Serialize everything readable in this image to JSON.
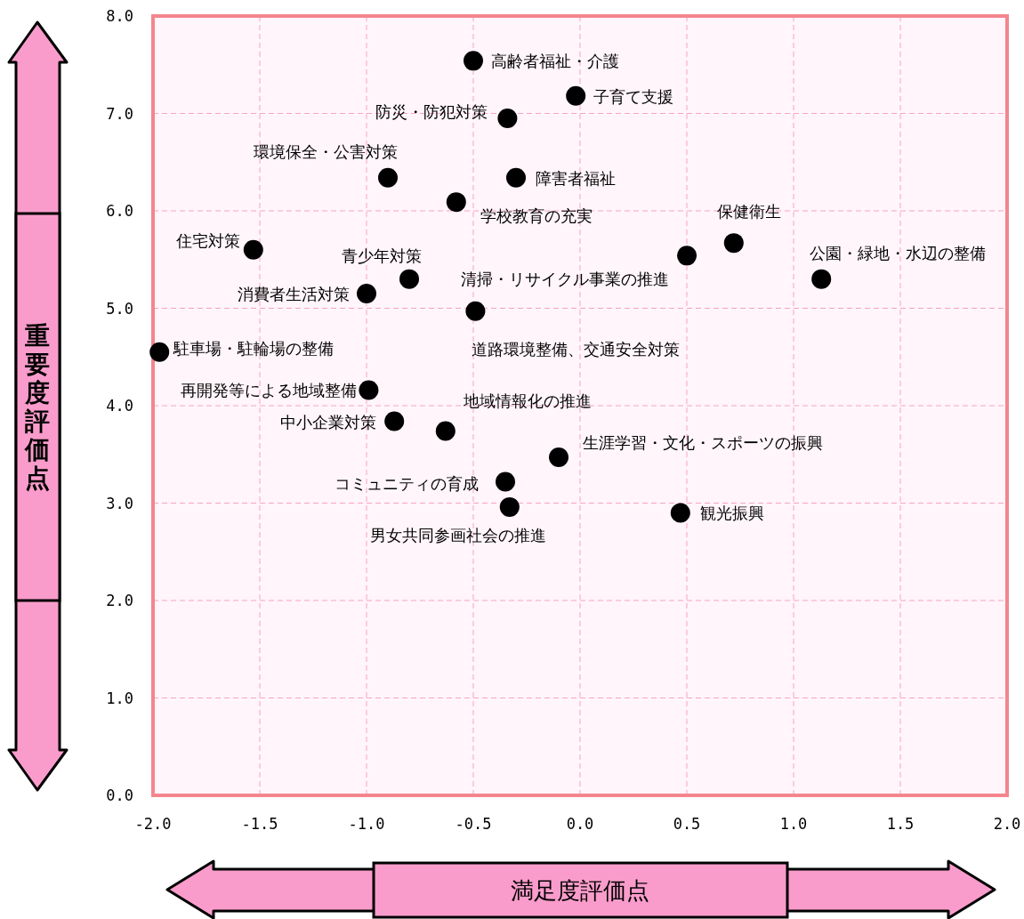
{
  "chart_data": {
    "type": "scatter",
    "xlabel": "満足度評価点",
    "ylabel": "重要度評価点",
    "xlim": [
      -2,
      2
    ],
    "ylim": [
      0,
      8
    ],
    "xticks": [
      {
        "value": -2,
        "label": "-2.0"
      },
      {
        "value": -1.5,
        "label": "-1.5"
      },
      {
        "value": -1,
        "label": "-1.0"
      },
      {
        "value": -0.5,
        "label": "-0.5"
      },
      {
        "value": 0,
        "label": "0.0"
      },
      {
        "value": 0.5,
        "label": "0.5"
      },
      {
        "value": 1,
        "label": "1.0"
      },
      {
        "value": 1.5,
        "label": "1.5"
      },
      {
        "value": 2,
        "label": "2.0"
      }
    ],
    "yticks": [
      {
        "value": 0,
        "label": "0.0"
      },
      {
        "value": 1,
        "label": "1.0"
      },
      {
        "value": 2,
        "label": "2.0"
      },
      {
        "value": 3,
        "label": "3.0"
      },
      {
        "value": 4,
        "label": "4.0"
      },
      {
        "value": 5,
        "label": "5.0"
      },
      {
        "value": 6,
        "label": "6.0"
      },
      {
        "value": 7,
        "label": "7.0"
      },
      {
        "value": 8,
        "label": "8.0"
      }
    ],
    "grid": true,
    "marker": "circle",
    "series": [
      {
        "color": "#000000",
        "x": [
          -0.5,
          -0.02,
          -0.34,
          -0.9,
          -0.3,
          -0.58,
          -1.53,
          0.72,
          0.5,
          1.13,
          -0.8,
          -1.0,
          -0.49,
          -1.97,
          -0.99,
          -0.87,
          -0.63,
          -0.1,
          -0.35,
          -0.33,
          0.47
        ],
        "values": [
          7.54,
          7.18,
          6.95,
          6.34,
          6.34,
          6.09,
          5.6,
          5.67,
          5.54,
          5.3,
          5.3,
          5.15,
          4.97,
          4.55,
          4.16,
          3.84,
          3.74,
          3.47,
          3.22,
          2.96,
          2.9
        ]
      }
    ],
    "annotations": [
      {
        "text": "高齢者福祉・介護",
        "x": -0.5,
        "y": 7.54
      },
      {
        "text": "子育て支援",
        "x": -0.02,
        "y": 7.18
      },
      {
        "text": "防災・防犯対策",
        "x": -0.34,
        "y": 6.95
      },
      {
        "text": "環境保全・公害対策",
        "x": -0.9,
        "y": 6.34
      },
      {
        "text": "障害者福祉",
        "x": -0.3,
        "y": 6.34
      },
      {
        "text": "学校教育の充実",
        "x": -0.58,
        "y": 6.09
      },
      {
        "text": "住宅対策",
        "x": -1.53,
        "y": 5.6
      },
      {
        "text": "保健衛生",
        "x": 0.72,
        "y": 5.67
      },
      {
        "text": "清掃・リサイクル事業の推進",
        "x": 0.5,
        "y": 5.54
      },
      {
        "text": "公園・緑地・水辺の整備",
        "x": 1.13,
        "y": 5.3
      },
      {
        "text": "青少年対策",
        "x": -0.8,
        "y": 5.3
      },
      {
        "text": "消費者生活対策",
        "x": -1.0,
        "y": 5.15
      },
      {
        "text": "道路環境整備、交通安全対策",
        "x": -0.49,
        "y": 4.97
      },
      {
        "text": "駐車場・駐輪場の整備",
        "x": -1.97,
        "y": 4.55
      },
      {
        "text": "再開発等による地域整備",
        "x": -0.99,
        "y": 4.16
      },
      {
        "text": "中小企業対策",
        "x": -0.87,
        "y": 3.84
      },
      {
        "text": "地域情報化の推進",
        "x": -0.63,
        "y": 3.74
      },
      {
        "text": "生涯学習・文化・スポーツの振興",
        "x": -0.1,
        "y": 3.47
      },
      {
        "text": "コミュニティの育成",
        "x": -0.35,
        "y": 3.22
      },
      {
        "text": "男女共同参画社会の推進",
        "x": -0.33,
        "y": 2.96
      },
      {
        "text": "観光振興",
        "x": 0.47,
        "y": 2.9
      }
    ]
  }
}
